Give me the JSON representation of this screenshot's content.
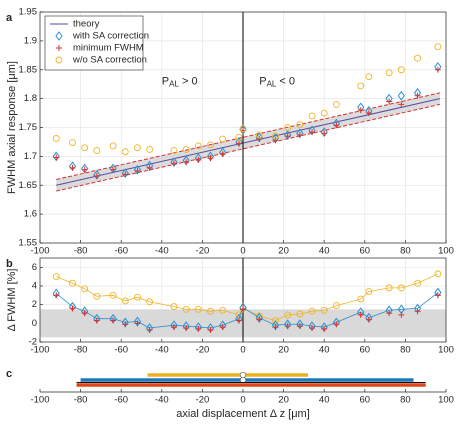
{
  "chart_data": [
    {
      "type": "scatter",
      "panel": "a",
      "ylabel": "FWHM axial response [μm]",
      "xlim": [
        -100,
        100
      ],
      "xticks": [
        -100,
        -80,
        -60,
        -40,
        -20,
        0,
        20,
        40,
        60,
        80,
        100
      ],
      "ylim": [
        1.55,
        1.95
      ],
      "yticks": [
        1.55,
        1.6,
        1.65,
        1.7,
        1.75,
        1.8,
        1.85,
        1.9,
        1.95
      ],
      "grid": true,
      "legend": "upper left",
      "annotations": [
        {
          "text": "P",
          "sub": "AL",
          "rest": " > 0",
          "x": -40,
          "y": 1.83
        },
        {
          "text": "P",
          "sub": "AL",
          "rest": " < 0",
          "x": 8,
          "y": 1.83
        }
      ],
      "theory": {
        "name": "theory",
        "color": "#5b4a9e",
        "x": [
          -92,
          97
        ],
        "values": [
          1.65,
          1.8
        ],
        "band_color": "#d63030",
        "lower": [
          1.64,
          1.79
        ],
        "upper": [
          1.66,
          1.81
        ]
      },
      "x": [
        -92,
        -84,
        -78,
        -72,
        -64,
        -58,
        -52,
        -46,
        -34,
        -28,
        -22,
        -16,
        -10,
        -2,
        0,
        8,
        16,
        22,
        28,
        34,
        40,
        46,
        58,
        62,
        72,
        78,
        86,
        96
      ],
      "series": [
        {
          "name": "with SA correction",
          "color": "#2a8fd0",
          "marker": "diamond",
          "values": [
            1.7,
            1.683,
            1.679,
            1.668,
            1.679,
            1.671,
            1.677,
            1.684,
            1.69,
            1.693,
            1.697,
            1.7,
            1.707,
            1.725,
            1.746,
            1.733,
            1.732,
            1.737,
            1.74,
            1.745,
            1.742,
            1.757,
            1.785,
            1.779,
            1.8,
            1.805,
            1.81,
            1.855
          ]
        },
        {
          "name": "minimum FWHM",
          "color": "#e0302a",
          "marker": "plus",
          "values": [
            1.698,
            1.68,
            1.677,
            1.666,
            1.677,
            1.669,
            1.675,
            1.68,
            1.688,
            1.69,
            1.694,
            1.697,
            1.704,
            1.722,
            1.745,
            1.73,
            1.728,
            1.735,
            1.737,
            1.742,
            1.74,
            1.754,
            1.78,
            1.775,
            1.795,
            1.79,
            1.805,
            1.85
          ]
        },
        {
          "name": "w/o SA correction",
          "color": "#f0b429",
          "marker": "circle",
          "values": [
            1.731,
            1.724,
            1.715,
            1.71,
            1.718,
            1.708,
            1.715,
            1.712,
            1.71,
            1.712,
            1.718,
            1.72,
            1.73,
            1.733,
            1.748,
            1.737,
            1.735,
            1.75,
            1.755,
            1.77,
            1.775,
            1.79,
            1.822,
            1.838,
            1.845,
            1.85,
            1.87,
            1.89
          ]
        }
      ]
    },
    {
      "type": "scatter",
      "panel": "b",
      "ylabel": "Δ FWHM [%]",
      "xlim": [
        -100,
        100
      ],
      "xticks": [
        -100,
        -80,
        -60,
        -40,
        -20,
        0,
        20,
        40,
        60,
        80,
        100
      ],
      "ylim": [
        -2,
        7
      ],
      "yticks": [
        -2,
        0,
        2,
        4,
        6
      ],
      "grid": true,
      "band": {
        "color": "#d9d9d9",
        "lower": -1.5,
        "upper": 1.5
      },
      "x": [
        -92,
        -84,
        -78,
        -72,
        -64,
        -58,
        -52,
        -46,
        -34,
        -28,
        -22,
        -16,
        -10,
        -2,
        0,
        8,
        16,
        22,
        28,
        34,
        40,
        46,
        58,
        62,
        72,
        78,
        86,
        96
      ],
      "series": [
        {
          "color": "#f0b429",
          "marker": "circle",
          "line": true,
          "values": [
            5.0,
            4.3,
            3.7,
            2.9,
            3.0,
            2.4,
            2.8,
            2.3,
            1.8,
            1.5,
            1.5,
            1.3,
            1.4,
            0.9,
            1.6,
            0.8,
            0.3,
            0.9,
            1.0,
            1.3,
            1.4,
            1.9,
            2.6,
            3.4,
            3.8,
            3.8,
            4.3,
            5.3
          ]
        },
        {
          "color": "#2a8fd0",
          "marker": "diamond",
          "line": true,
          "values": [
            3.2,
            1.8,
            1.3,
            0.5,
            0.5,
            0.1,
            0.2,
            -0.5,
            -0.2,
            -0.3,
            -0.4,
            -0.5,
            -0.2,
            0.5,
            1.7,
            0.6,
            -0.2,
            -0.1,
            -0.1,
            -0.3,
            -0.4,
            0.1,
            1.2,
            0.6,
            1.4,
            1.5,
            1.6,
            3.3
          ]
        },
        {
          "color": "#e0302a",
          "marker": "plus",
          "line": false,
          "values": [
            3.0,
            1.6,
            1.1,
            0.3,
            0.3,
            -0.1,
            0.0,
            -0.7,
            -0.4,
            -0.5,
            -0.6,
            -0.7,
            -0.4,
            0.3,
            1.5,
            0.4,
            -0.4,
            -0.3,
            -0.3,
            -0.5,
            -0.6,
            -0.1,
            0.9,
            0.4,
            1.1,
            0.9,
            1.3,
            3.0
          ]
        }
      ]
    },
    {
      "type": "range",
      "panel": "c",
      "xlabel": "axial displacement  Δ z [μm]",
      "xlim": [
        -100,
        100
      ],
      "xticks": [
        -100,
        -80,
        -60,
        -40,
        -20,
        0,
        20,
        40,
        60,
        80,
        100
      ],
      "bars": [
        {
          "color": "#e8b21e",
          "start": -47,
          "end": 32,
          "center": 0
        },
        {
          "color": "#1f78b8",
          "start": -80,
          "end": 84,
          "center": 0
        },
        {
          "color": "#111111",
          "start": -82,
          "end": 90
        },
        {
          "color": "#e0461e",
          "start": -82,
          "end": 90
        }
      ]
    }
  ]
}
